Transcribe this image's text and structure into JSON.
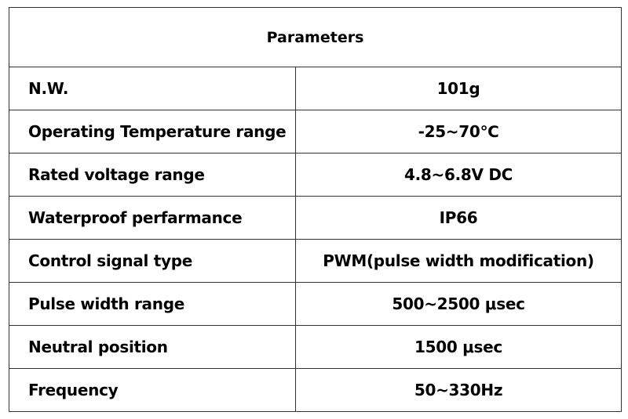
{
  "table": {
    "title": "Parameters",
    "rows": [
      [
        "N.W.",
        "101g"
      ],
      [
        "Operating Temperature range",
        "-25~70℃"
      ],
      [
        "Rated voltage range",
        "4.8~6.8V DC"
      ],
      [
        "Waterproof perfarmance",
        "IP66"
      ],
      [
        "Control signal type",
        "PWM(pulse width modification)"
      ],
      [
        "Pulse width range",
        "500~2500 μsec"
      ],
      [
        "Neutral position",
        "1500 μsec"
      ],
      [
        "Frequency",
        "50~330Hz"
      ]
    ]
  }
}
